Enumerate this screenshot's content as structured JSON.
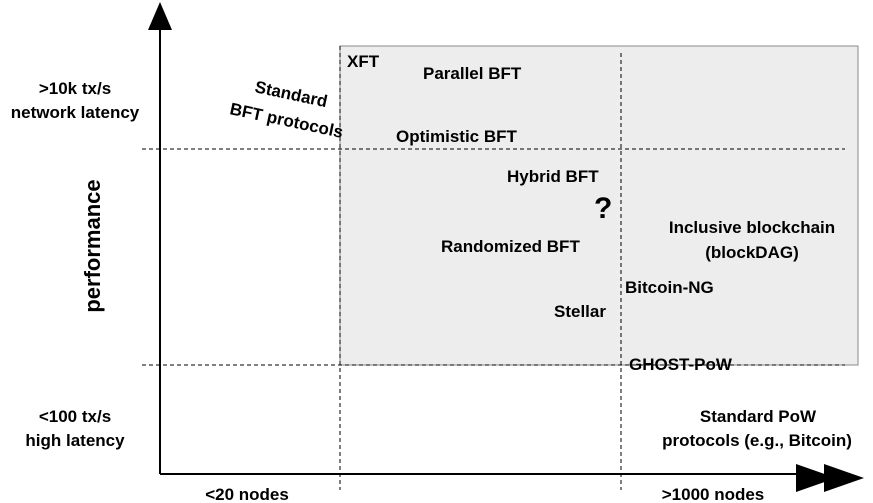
{
  "colors": {
    "region_fill": "#ededed",
    "region_stroke": "#8a8a8a",
    "axis": "#000000",
    "dashed": "#000000"
  },
  "axes": {
    "y_label": "performance",
    "y_high": [
      "&gt;10k tx/s",
      "network latency"
    ],
    "y_low": [
      "&lt;100 tx/s",
      "high latency"
    ],
    "x_low": "&lt;20 nodes",
    "x_high": "&gt;1000 nodes"
  },
  "protocols": {
    "xft": "XFT",
    "parallel_bft": "Parallel BFT",
    "standard_bft": [
      "Standard",
      "BFT protocols"
    ],
    "optimistic_bft": "Optimistic BFT",
    "hybrid_bft": "Hybrid BFT",
    "question": "?",
    "randomized_bft": "Randomized BFT",
    "inclusive_blockchain": [
      "Inclusive blockchain",
      "(blockDAG)"
    ],
    "bitcoin_ng": "Bitcoin-NG",
    "stellar": "Stellar",
    "ghost_pow": "GHOST-PoW",
    "standard_pow": [
      "Standard PoW",
      "protocols (e.g., Bitcoin)"
    ]
  }
}
